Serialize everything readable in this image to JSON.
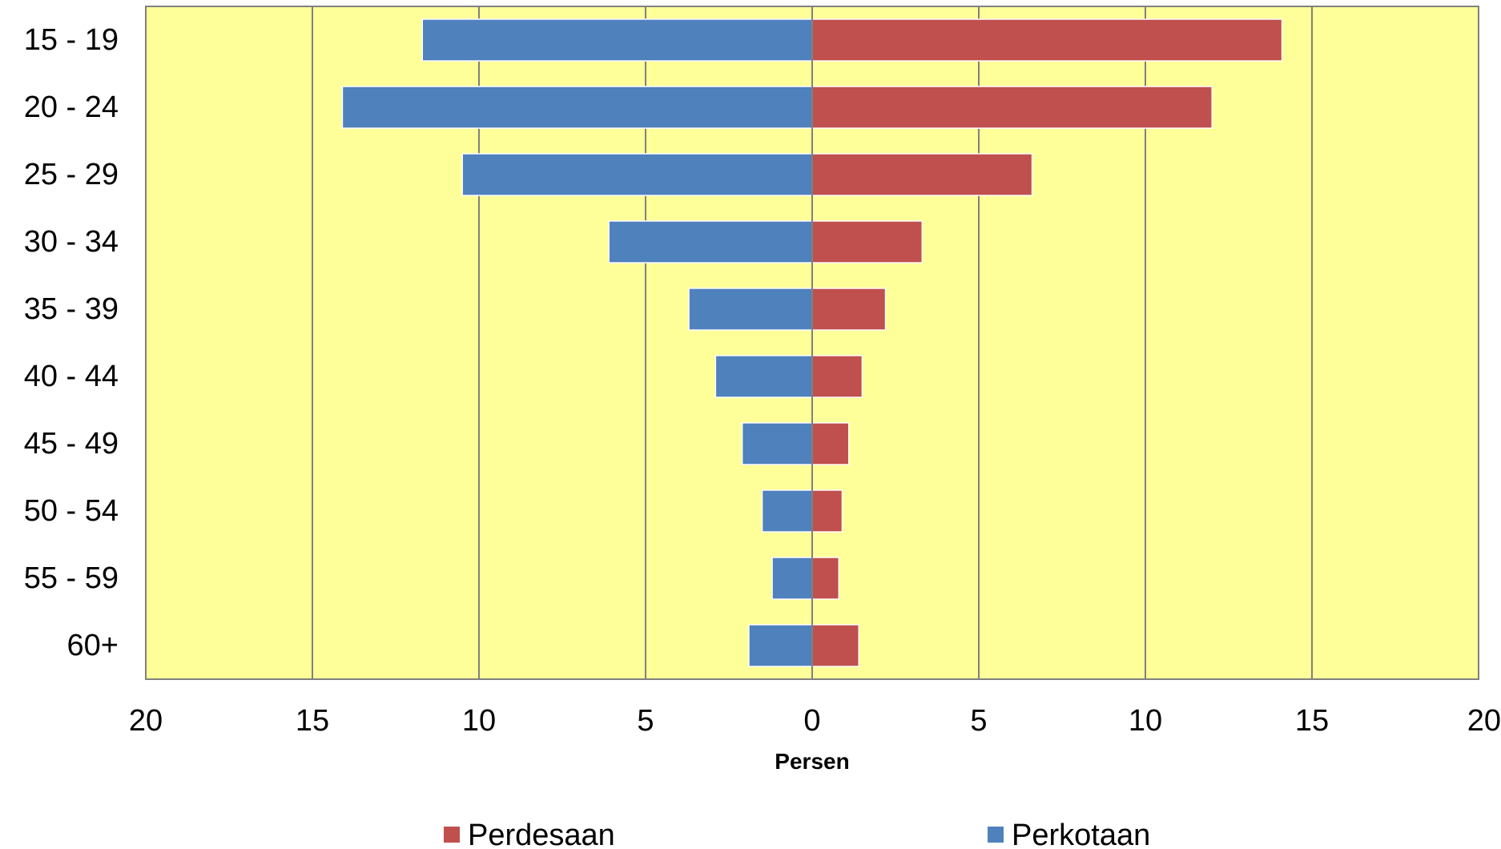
{
  "chart_data": {
    "type": "bar",
    "orientation": "horizontal",
    "layout": "population-pyramid",
    "categories": [
      "15 - 19",
      "20 - 24",
      "25 - 29",
      "30 - 34",
      "35 - 39",
      "40 - 44",
      "45 - 49",
      "50 - 54",
      "55 - 59",
      "60+"
    ],
    "series": [
      {
        "name": "Perkotaan",
        "side": "left",
        "color": "#4F81BD",
        "values": [
          11.7,
          14.1,
          10.5,
          6.1,
          3.7,
          2.9,
          2.1,
          1.5,
          1.2,
          1.9
        ]
      },
      {
        "name": "Perdesaan",
        "side": "right",
        "color": "#C0504D",
        "values": [
          14.1,
          12.0,
          6.6,
          3.3,
          2.2,
          1.5,
          1.1,
          0.9,
          0.8,
          1.4
        ]
      }
    ],
    "xlabel": "Persen",
    "xlim": [
      -20,
      20
    ],
    "x_ticks": [
      -20,
      -15,
      -10,
      -5,
      0,
      5,
      10,
      15,
      20
    ],
    "x_tick_labels": [
      "20",
      "15",
      "10",
      "5",
      "0",
      "5",
      "10",
      "15",
      "20"
    ],
    "plot_background": "#FFFF99",
    "grid": "vertical",
    "legend": {
      "position": "bottom",
      "entries": [
        "Perdesaan",
        "Perkotaan"
      ]
    }
  }
}
